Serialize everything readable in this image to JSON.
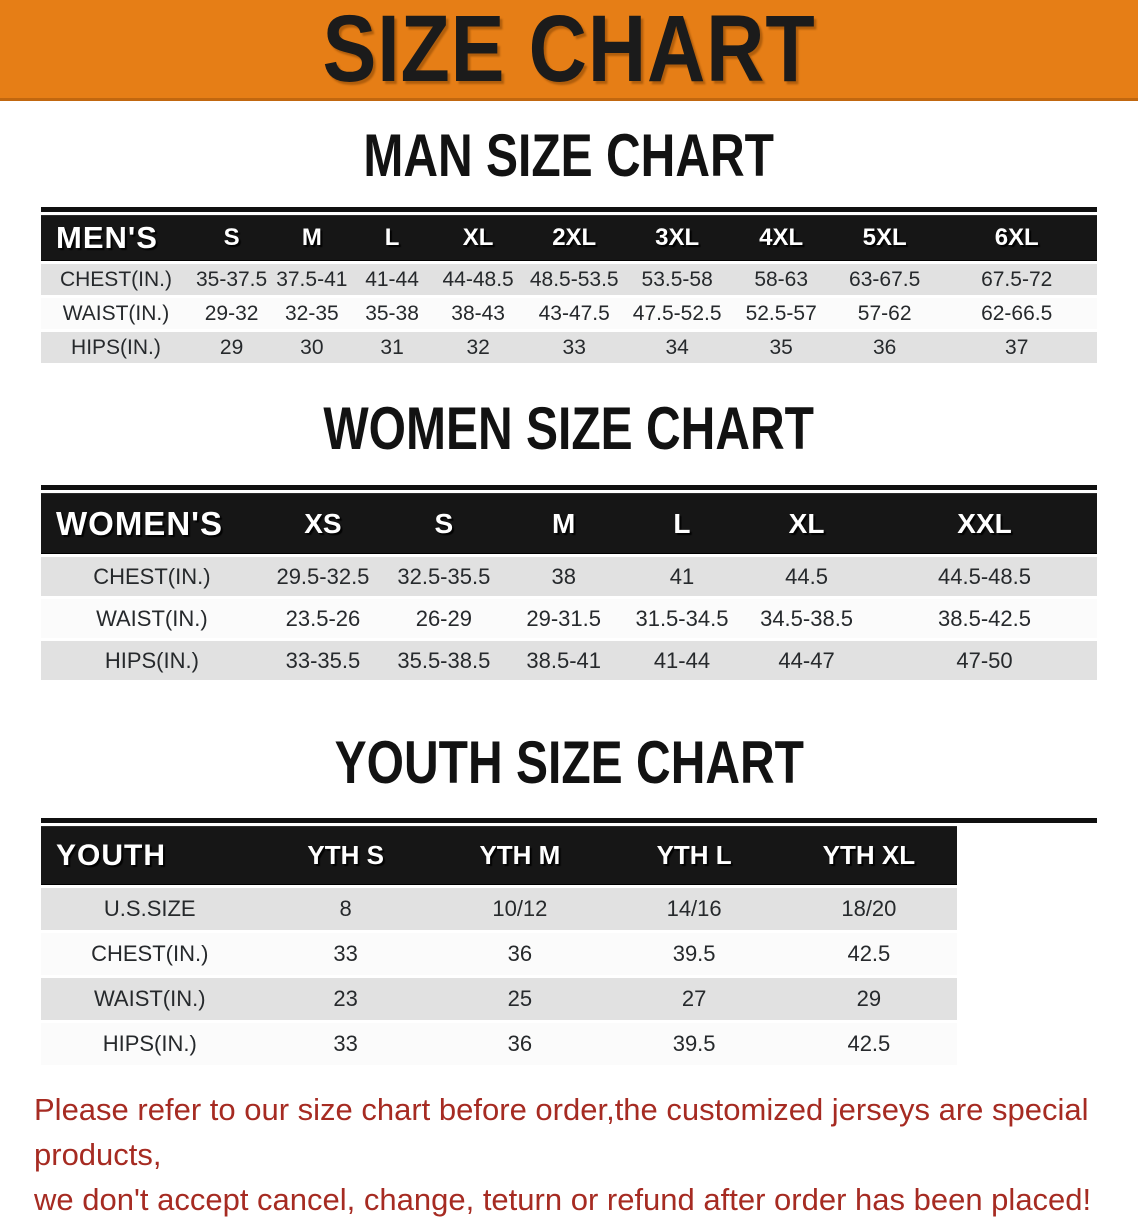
{
  "banner": {
    "title": "SIZE CHART",
    "bg_color": "#e67e16"
  },
  "sections": [
    {
      "heading": "MAN SIZE CHART",
      "table": {
        "header": [
          "MEN'S",
          "S",
          "M",
          "L",
          "XL",
          "2XL",
          "3XL",
          "4XL",
          "5XL",
          "6XL"
        ],
        "rows": [
          {
            "label": "CHEST(IN.)",
            "values": [
              "35-37.5",
              "37.5-41",
              "41-44",
              "44-48.5",
              "48.5-53.5",
              "53.5-58",
              "58-63",
              "63-67.5",
              "67.5-72"
            ]
          },
          {
            "label": "WAIST(IN.)",
            "values": [
              "29-32",
              "32-35",
              "35-38",
              "38-43",
              "43-47.5",
              "47.5-52.5",
              "52.5-57",
              "57-62",
              "62-66.5"
            ]
          },
          {
            "label": "HIPS(IN.)",
            "values": [
              "29",
              "30",
              "31",
              "32",
              "33",
              "34",
              "35",
              "36",
              "37"
            ]
          }
        ]
      }
    },
    {
      "heading": "WOMEN SIZE CHART",
      "table": {
        "header": [
          "WOMEN'S",
          "XS",
          "S",
          "M",
          "L",
          "XL",
          "XXL"
        ],
        "rows": [
          {
            "label": "CHEST(IN.)",
            "values": [
              "29.5-32.5",
              "32.5-35.5",
              "38",
              "41",
              "44.5",
              "44.5-48.5"
            ]
          },
          {
            "label": "WAIST(IN.)",
            "values": [
              "23.5-26",
              "26-29",
              "29-31.5",
              "31.5-34.5",
              "34.5-38.5",
              "38.5-42.5"
            ]
          },
          {
            "label": "HIPS(IN.)",
            "values": [
              "33-35.5",
              "35.5-38.5",
              "38.5-41",
              "41-44",
              "44-47",
              "47-50"
            ]
          }
        ]
      }
    },
    {
      "heading": "YOUTH SIZE CHART",
      "table": {
        "spacer_col": true,
        "header": [
          "YOUTH",
          "YTH S",
          "YTH M",
          "YTH L",
          "YTH XL"
        ],
        "rows": [
          {
            "label": "U.S.SIZE",
            "values": [
              "8",
              "10/12",
              "14/16",
              "18/20"
            ]
          },
          {
            "label": "CHEST(IN.)",
            "values": [
              "33",
              "36",
              "39.5",
              "42.5"
            ]
          },
          {
            "label": "WAIST(IN.)",
            "values": [
              "23",
              "25",
              "27",
              "29"
            ]
          },
          {
            "label": "HIPS(IN.)",
            "values": [
              "33",
              "36",
              "39.5",
              "42.5"
            ]
          }
        ]
      }
    }
  ],
  "footer": {
    "text_color": "#a62b22",
    "lines": [
      "Please refer to our size chart before order,the customized jerseys are special products,",
      "we don't accept cancel, change, teturn or refund after order has been placed!"
    ]
  }
}
